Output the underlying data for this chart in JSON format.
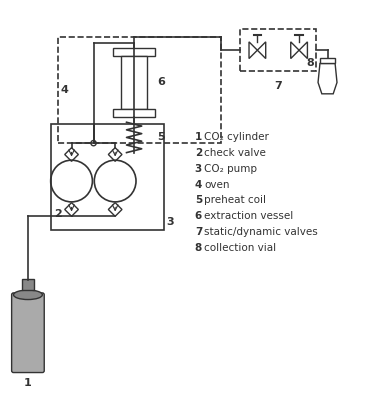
{
  "title": "",
  "background_color": "#ffffff",
  "legend": [
    {
      "num": "1",
      "text": "CO₂ cylinder"
    },
    {
      "num": "2",
      "text": "check valve"
    },
    {
      "num": "3",
      "text": "CO₂ pump"
    },
    {
      "num": "4",
      "text": "oven"
    },
    {
      "num": "5",
      "text": "preheat coil"
    },
    {
      "num": "6",
      "text": "extraction vessel"
    },
    {
      "num": "7",
      "text": "static/dynamic valves"
    },
    {
      "num": "8",
      "text": "collection vial"
    }
  ],
  "line_color": "#333333",
  "box_color": "#555555",
  "figsize": [
    3.82,
    4.0
  ],
  "dpi": 100
}
